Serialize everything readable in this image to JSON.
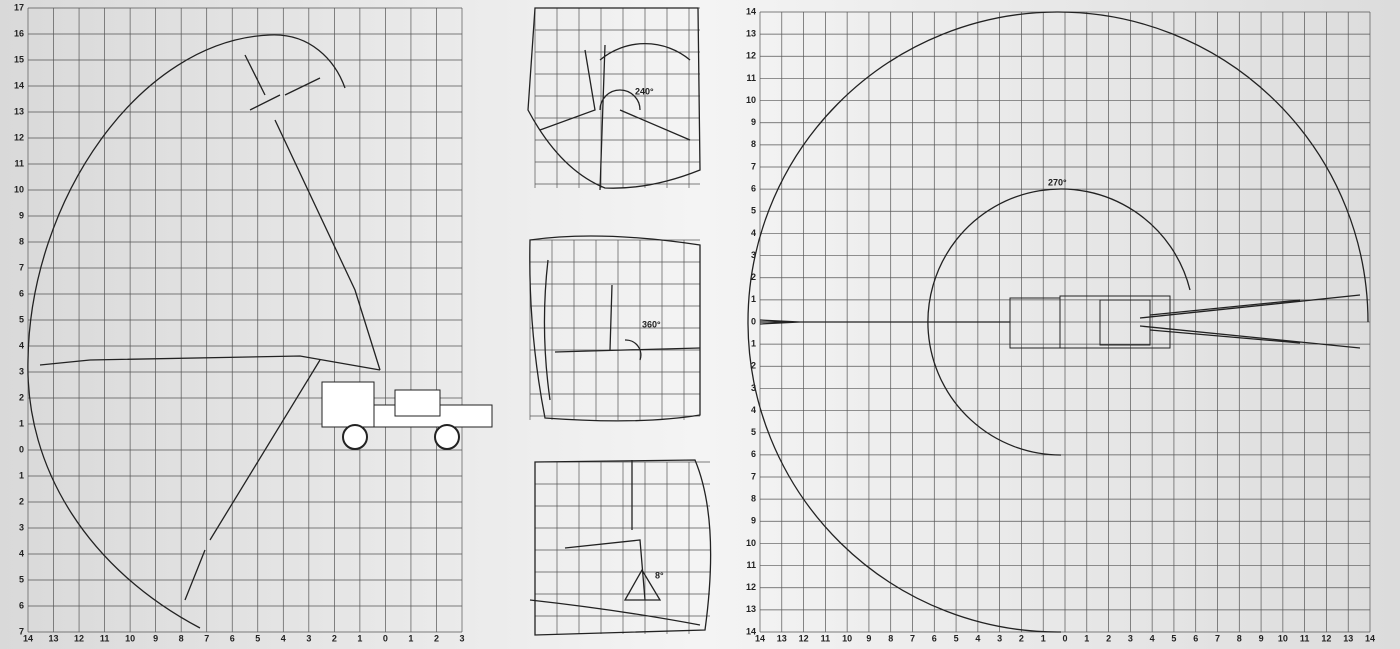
{
  "side_view": {
    "y_labels": [
      "17",
      "16",
      "15",
      "14",
      "13",
      "12",
      "11",
      "10",
      "9",
      "8",
      "7",
      "6",
      "5",
      "4",
      "3",
      "2",
      "1",
      "0",
      "1",
      "2",
      "3",
      "4",
      "5",
      "6",
      "7"
    ],
    "x_labels": [
      "14",
      "13",
      "12",
      "11",
      "10",
      "9",
      "8",
      "7",
      "6",
      "5",
      "4",
      "3",
      "2",
      "1",
      "0",
      "1",
      "2",
      "3"
    ]
  },
  "insets": {
    "angles": [
      "240°",
      "360°",
      "8°"
    ]
  },
  "top_view": {
    "angle": "270°",
    "y_labels": [
      "14",
      "13",
      "12",
      "11",
      "10",
      "9",
      "8",
      "7",
      "6",
      "5",
      "4",
      "3",
      "2",
      "1",
      "0",
      "1",
      "2",
      "3",
      "4",
      "5",
      "6",
      "7",
      "8",
      "9",
      "10",
      "11",
      "12",
      "13",
      "14"
    ],
    "x_labels": [
      "14",
      "13",
      "12",
      "11",
      "10",
      "9",
      "8",
      "7",
      "6",
      "5",
      "4",
      "3",
      "2",
      "1",
      "0",
      "1",
      "2",
      "3",
      "4",
      "5",
      "6",
      "7",
      "8",
      "9",
      "10",
      "11",
      "12",
      "13",
      "14"
    ]
  }
}
